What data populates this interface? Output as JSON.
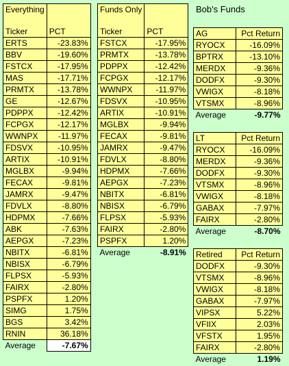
{
  "everything": {
    "title": "Everything",
    "col_ticker": "Ticker",
    "col_pct": "PCT",
    "rows": [
      [
        "ERTS",
        "-23.83%"
      ],
      [
        "BBV",
        "-19.60%"
      ],
      [
        "FSTCX",
        "-17.95%"
      ],
      [
        "MAS",
        "-17.71%"
      ],
      [
        "PRMTX",
        "-13.78%"
      ],
      [
        "GE",
        "-12.67%"
      ],
      [
        "PDPPX",
        "-12.42%"
      ],
      [
        "FCPGX",
        "-12.17%"
      ],
      [
        "WWNPX",
        "-11.97%"
      ],
      [
        "FDSVX",
        "-10.95%"
      ],
      [
        "ARTIX",
        "-10.91%"
      ],
      [
        "MGLBX",
        "-9.94%"
      ],
      [
        "FECAX",
        "-9.81%"
      ],
      [
        "JAMRX",
        "-9.47%"
      ],
      [
        "FDVLX",
        "-8.80%"
      ],
      [
        "HDPMX",
        "-7.66%"
      ],
      [
        "ABK",
        "-7.63%"
      ],
      [
        "AEPGX",
        "-7.23%"
      ],
      [
        "NBITX",
        "-6.81%"
      ],
      [
        "NBISX",
        "-6.79%"
      ],
      [
        "FLPSX",
        "-5.93%"
      ],
      [
        "FAIRX",
        "-2.80%"
      ],
      [
        "PSPFX",
        "1.20%"
      ],
      [
        "SIMG",
        "1.75%"
      ],
      [
        "BGS",
        "3.42%"
      ],
      [
        "RNIN",
        "36.18%"
      ]
    ],
    "avg_label": "Average",
    "avg_value": "-7.67%"
  },
  "funds_only": {
    "title": "Funds Only",
    "col_ticker": "Ticker",
    "col_pct": "PCT",
    "rows": [
      [
        "FSTCX",
        "-17.95%"
      ],
      [
        "PRMTX",
        "-13.78%"
      ],
      [
        "PDPPX",
        "-12.42%"
      ],
      [
        "FCPGX",
        "-12.17%"
      ],
      [
        "WWNPX",
        "-11.97%"
      ],
      [
        "FDSVX",
        "-10.95%"
      ],
      [
        "ARTIX",
        "-10.91%"
      ],
      [
        "MGLBX",
        "-9.94%"
      ],
      [
        "FECAX",
        "-9.81%"
      ],
      [
        "JAMRX",
        "-9.47%"
      ],
      [
        "FDVLX",
        "-8.80%"
      ],
      [
        "HDPMX",
        "-7.66%"
      ],
      [
        "AEPGX",
        "-7.23%"
      ],
      [
        "NBITX",
        "-6.81%"
      ],
      [
        "NBISX",
        "-6.79%"
      ],
      [
        "FLPSX",
        "-5.93%"
      ],
      [
        "FAIRX",
        "-2.80%"
      ],
      [
        "PSPFX",
        "1.20%"
      ]
    ],
    "avg_label": "Average",
    "avg_value": "-8.91%"
  },
  "bobs_funds": {
    "title": "Bob's Funds",
    "ag": {
      "name": "AG",
      "col_pct": "Pct Return",
      "rows": [
        [
          "RYOCX",
          "-16.09%"
        ],
        [
          "BPTRX",
          "-13.10%"
        ],
        [
          "MERDX",
          "-9.36%"
        ],
        [
          "DODFX",
          "-9.30%"
        ],
        [
          "VWIGX",
          "-8.18%"
        ],
        [
          "VTSMX",
          "-8.96%"
        ]
      ],
      "avg_label": "Average",
      "avg_value": "-9.77%"
    },
    "lt": {
      "name": "LT",
      "col_pct": "Pct Return",
      "rows": [
        [
          "RYOCX",
          "-16.09%"
        ],
        [
          "MERDX",
          "-9.36%"
        ],
        [
          "DODFX",
          "-9.30%"
        ],
        [
          "VTSMX",
          "-8.96%"
        ],
        [
          "VWIGX",
          "-8.18%"
        ],
        [
          "GABAX",
          "-7.97%"
        ],
        [
          "FAIRX",
          "-2.80%"
        ]
      ],
      "avg_label": "Average",
      "avg_value": "-8.70%"
    },
    "retired": {
      "name": "Retired",
      "col_pct": "Pct Return",
      "rows": [
        [
          "DODFX",
          "-9.30%"
        ],
        [
          "VTSMX",
          "-8.96%"
        ],
        [
          "VWIGX",
          "-8.18%"
        ],
        [
          "GABAX",
          "-7.97%"
        ],
        [
          "VIPSX",
          "5.22%"
        ],
        [
          "VFIIX",
          "2.03%"
        ],
        [
          "VFSTX",
          "1.95%"
        ],
        [
          "FAIRX",
          "-2.80%"
        ]
      ],
      "avg_label": "Average",
      "avg_value": "1.19%"
    }
  },
  "colors": {
    "background": "#ccffcc",
    "cell": "#ffff99",
    "avg_cell": "#ffffff"
  }
}
